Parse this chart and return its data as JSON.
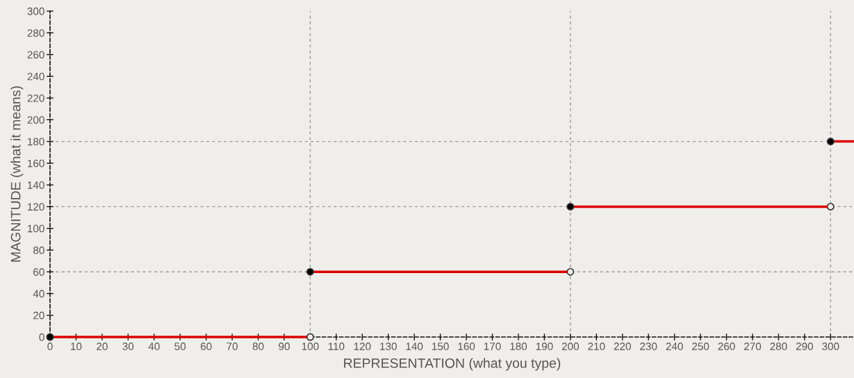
{
  "chart_data": {
    "type": "line",
    "xlabel": "REPRESENTATION (what you type)",
    "ylabel": "MAGNITUDE (what it means)",
    "series": [
      {
        "color": "#dd0000",
        "x": [
          0,
          100
        ],
        "values": [
          0,
          0
        ]
      },
      {
        "color": "#dd0000",
        "x": [
          100,
          200
        ],
        "values": [
          60,
          60
        ]
      },
      {
        "color": "#dd0000",
        "x": [
          200,
          300
        ],
        "values": [
          120,
          120
        ]
      },
      {
        "color": "#dd0000",
        "x": [
          300,
          309
        ],
        "values": [
          180,
          180
        ]
      },
      {
        "type": "scatter",
        "color": "#000000",
        "marker": "circle",
        "x": [
          0,
          100,
          200,
          300
        ],
        "values": [
          0,
          60,
          120,
          180
        ]
      },
      {
        "type": "scatter",
        "color": "#efeeea",
        "marker": "circle",
        "x": [
          100,
          200,
          300
        ],
        "values": [
          0,
          60,
          120
        ]
      }
    ],
    "xlim": [
      0,
      309
    ],
    "ylim": [
      0,
      300
    ],
    "xticks": [
      0,
      10,
      20,
      30,
      40,
      50,
      60,
      70,
      80,
      90,
      100,
      110,
      120,
      130,
      140,
      150,
      160,
      170,
      180,
      190,
      200,
      210,
      220,
      230,
      240,
      250,
      260,
      270,
      280,
      290,
      300
    ],
    "yticks": [
      0,
      20,
      40,
      60,
      80,
      100,
      120,
      140,
      160,
      180,
      200,
      220,
      240,
      260,
      280,
      300
    ],
    "ref_lines": [
      {
        "axis": "x",
        "value": 100,
        "color": "#999999",
        "line_style": "dashed"
      },
      {
        "axis": "x",
        "value": 200,
        "color": "#999999",
        "line_style": "dashed"
      },
      {
        "axis": "x",
        "value": 300,
        "color": "#999999",
        "line_style": "dashed"
      },
      {
        "axis": "y",
        "value": 60,
        "color": "#999999",
        "line_style": "dashed"
      },
      {
        "axis": "y",
        "value": 120,
        "color": "#999999",
        "line_style": "dashed"
      },
      {
        "axis": "y",
        "value": 180,
        "color": "#999999",
        "line_style": "dashed"
      }
    ],
    "grid": false,
    "legend": false
  }
}
